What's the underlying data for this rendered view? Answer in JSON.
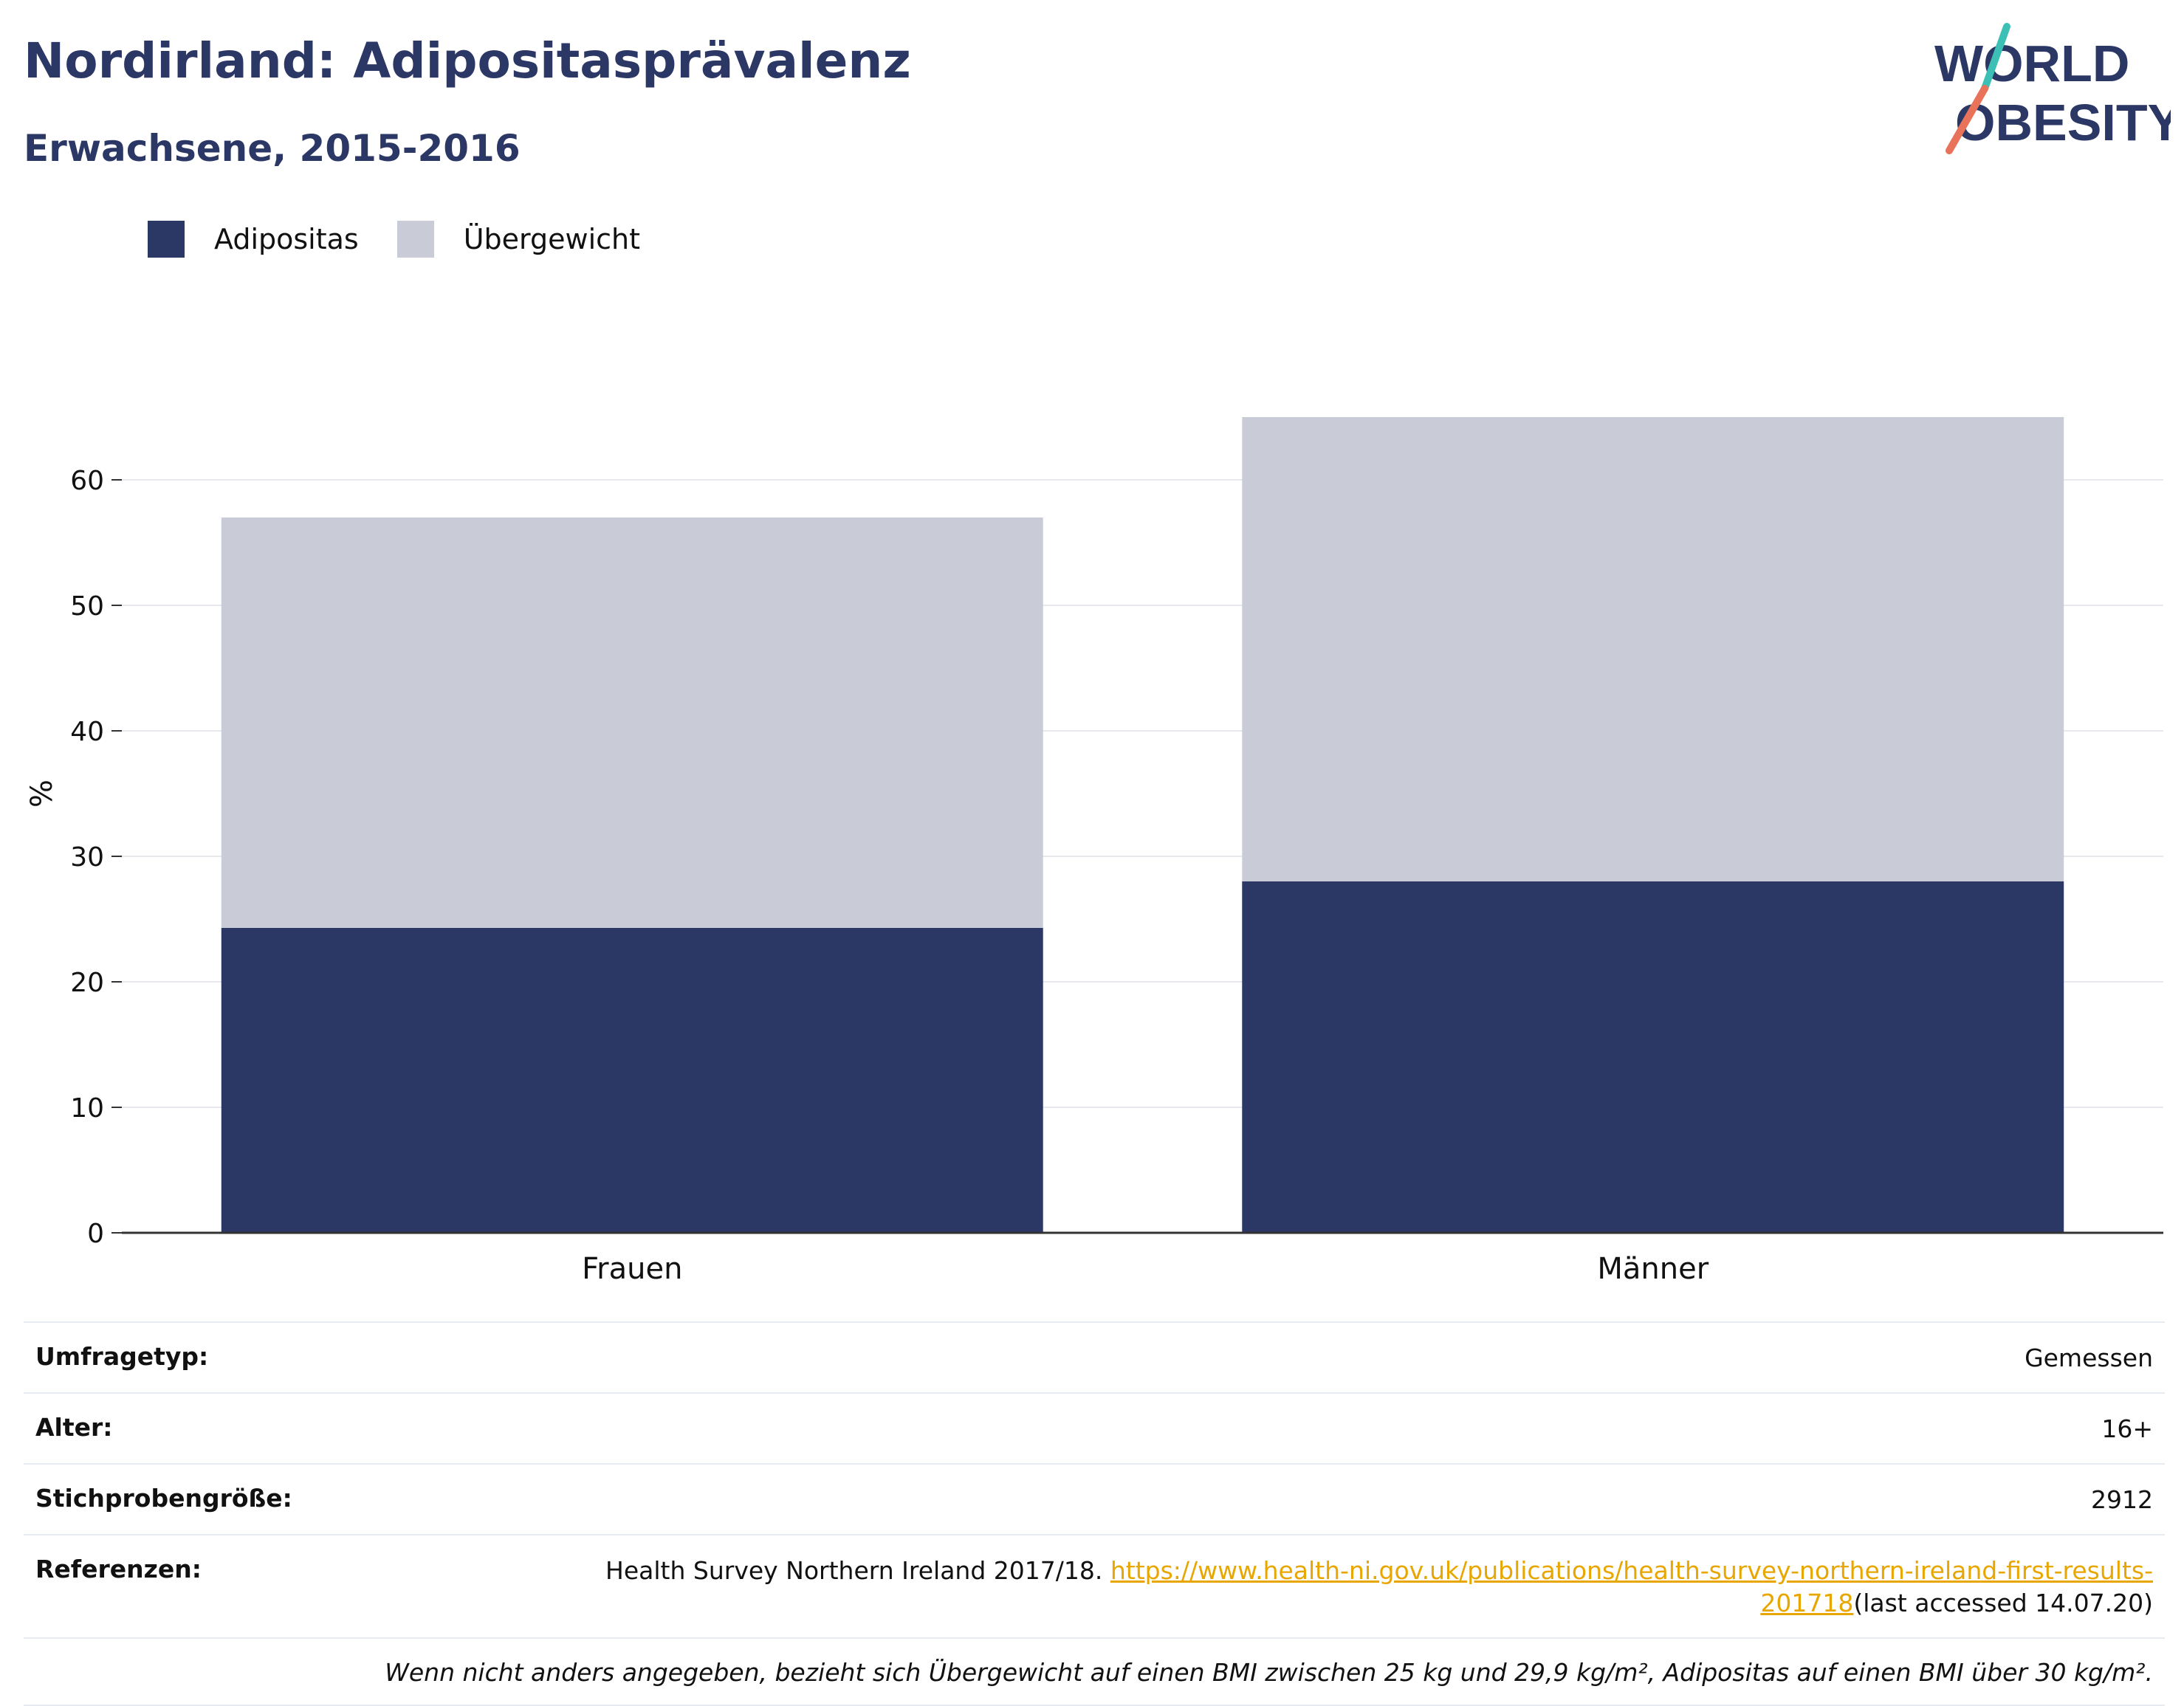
{
  "header": {
    "title": "Nordirland: Adipositasprävalenz",
    "subtitle": "Erwachsene, 2015-2016"
  },
  "logo": {
    "line1": "WORLD",
    "line2": "OBESITY",
    "colors": {
      "text": "#2b3764",
      "slash_top": "#3cbfb4",
      "slash_bottom": "#e8735a"
    }
  },
  "legend": [
    {
      "label": "Adipositas",
      "color": "#2b3764"
    },
    {
      "label": "Übergewicht",
      "color": "#c9cbd6"
    }
  ],
  "chart_data": {
    "type": "bar",
    "stacked": true,
    "categories": [
      "Frauen",
      "Männer"
    ],
    "series": [
      {
        "name": "Adipositas",
        "values": [
          24.3,
          28.0
        ],
        "color": "#2b3764"
      },
      {
        "name": "Übergewicht",
        "values": [
          32.7,
          37.0
        ],
        "color": "#c9cbd6"
      }
    ],
    "ylabel": "%",
    "yticks": [
      0,
      10,
      20,
      30,
      40,
      50,
      60
    ],
    "ylim": [
      0,
      70
    ],
    "grid": true,
    "legend_position": "top-left"
  },
  "info": {
    "rows": [
      {
        "key": "Umfragetyp:",
        "value": "Gemessen"
      },
      {
        "key": "Alter:",
        "value": "16+"
      },
      {
        "key": "Stichprobengröße:",
        "value": "2912"
      }
    ],
    "reference": {
      "key": "Referenzen:",
      "text": "Health Survey Northern Ireland 2017/18.",
      "link": "https://www.health-ni.gov.uk/publications/health-survey-northern-ireland-first-results-201718",
      "accessed": "(last accessed 14.07.20)"
    },
    "note": "Wenn nicht anders angegeben, bezieht sich Übergewicht auf einen BMI zwischen 25 kg und 29,9 kg/m², Adipositas auf einen BMI über 30 kg/m²."
  }
}
